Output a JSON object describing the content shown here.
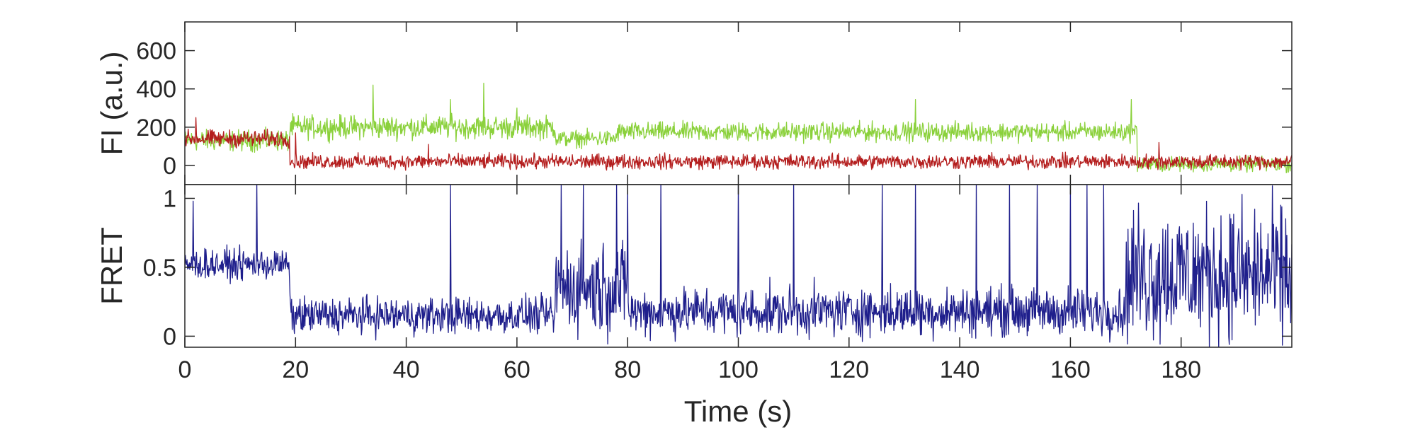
{
  "chart_data": [
    {
      "type": "line",
      "panel": "top",
      "ylabel": "FI (a.u.)",
      "xlim": [
        0,
        200
      ],
      "ylim": [
        -100,
        750
      ],
      "yticks": [
        0,
        200,
        400,
        600
      ],
      "ytick_labels": [
        "0",
        "200",
        "400",
        "600"
      ],
      "grid": false,
      "series": [
        {
          "color": "#8BD13C",
          "segments": [
            {
              "x0": 0,
              "x1": 19,
              "level": 130,
              "noise": 50
            },
            {
              "x0": 19,
              "x1": 67,
              "level": 200,
              "noise": 55
            },
            {
              "x0": 67,
              "x1": 78,
              "level": 140,
              "noise": 40
            },
            {
              "x0": 78,
              "x1": 172,
              "level": 175,
              "noise": 45
            },
            {
              "x0": 172,
              "x1": 200,
              "level": 5,
              "noise": 35
            }
          ],
          "spikes": [
            [
              34,
              420
            ],
            [
              48,
              345
            ],
            [
              54,
              430
            ],
            [
              60,
              300
            ],
            [
              132,
              345
            ],
            [
              171,
              345
            ]
          ]
        },
        {
          "color": "#B41E1E",
          "segments": [
            {
              "x0": 0,
              "x1": 19,
              "level": 140,
              "noise": 40
            },
            {
              "x0": 19,
              "x1": 200,
              "level": 20,
              "noise": 35
            }
          ],
          "spikes": [
            [
              2,
              250
            ],
            [
              20,
              170
            ],
            [
              44,
              110
            ],
            [
              176,
              120
            ]
          ]
        }
      ]
    },
    {
      "type": "line",
      "panel": "bottom",
      "ylabel": "FRET",
      "xlabel": "Time (s)",
      "xlim": [
        0,
        200
      ],
      "ylim": [
        -0.08,
        1.1
      ],
      "xticks": [
        0,
        20,
        40,
        60,
        80,
        100,
        120,
        140,
        160,
        180
      ],
      "xtick_labels": [
        "0",
        "20",
        "40",
        "60",
        "80",
        "100",
        "120",
        "140",
        "160",
        "180"
      ],
      "yticks": [
        0,
        0.5,
        1
      ],
      "ytick_labels": [
        "0",
        "0.5",
        "1"
      ],
      "grid": false,
      "series": [
        {
          "color": "#1F1F8C",
          "segments": [
            {
              "x0": 0,
              "x1": 19,
              "level": 0.52,
              "noise": 0.1
            },
            {
              "x0": 19,
              "x1": 67,
              "level": 0.15,
              "noise": 0.12
            },
            {
              "x0": 67,
              "x1": 80,
              "level": 0.35,
              "noise": 0.3
            },
            {
              "x0": 80,
              "x1": 170,
              "level": 0.18,
              "noise": 0.16
            },
            {
              "x0": 170,
              "x1": 200,
              "level": 0.45,
              "noise": 0.45
            }
          ],
          "spikes": [
            [
              1.5,
              0.98
            ],
            [
              13,
              1.1
            ],
            [
              48,
              1.1
            ],
            [
              68,
              1.1
            ],
            [
              72,
              1.1
            ],
            [
              78,
              1.1
            ],
            [
              80,
              1.1
            ],
            [
              86,
              1.1
            ],
            [
              100,
              1.1
            ],
            [
              110,
              1.1
            ],
            [
              126,
              1.1
            ],
            [
              132,
              1.1
            ],
            [
              143,
              1.1
            ],
            [
              149,
              1.1
            ],
            [
              154,
              1.1
            ],
            [
              160,
              1.1
            ],
            [
              163,
              1.1
            ],
            [
              166,
              1.1
            ]
          ]
        }
      ]
    }
  ]
}
